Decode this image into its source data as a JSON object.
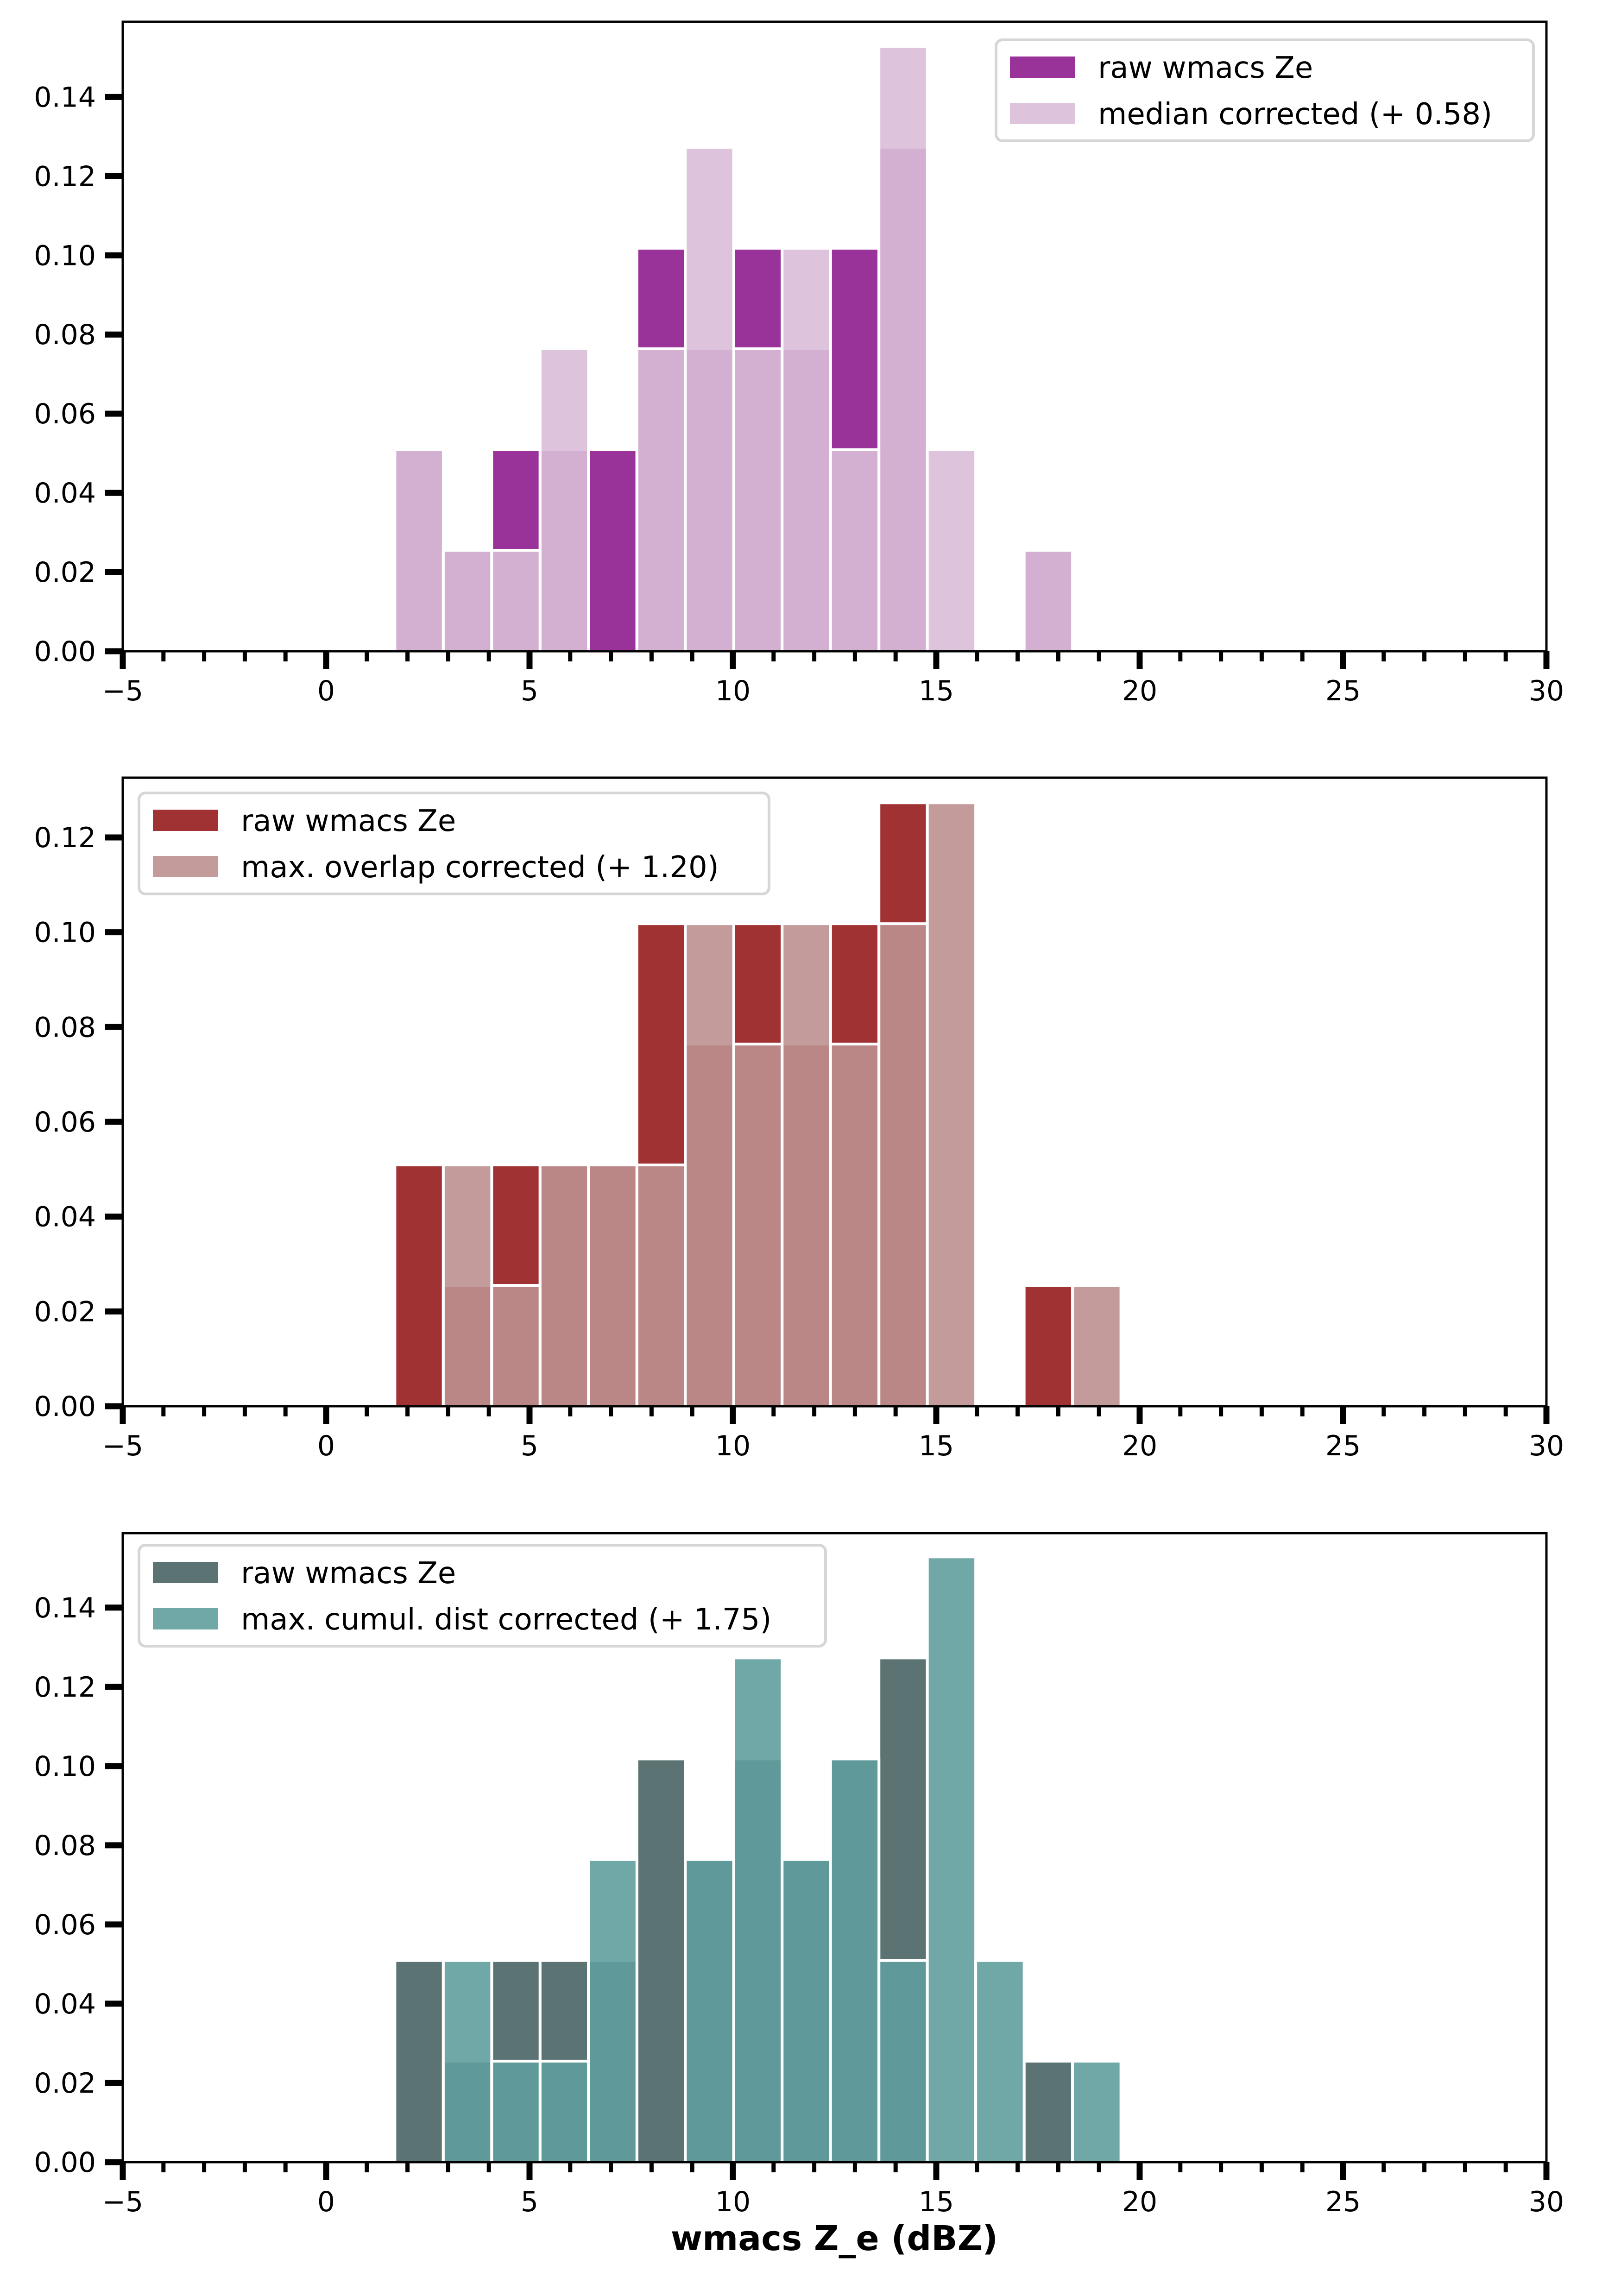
{
  "chart_data": [
    {
      "type": "bar",
      "subtype": "overlaid-histogram",
      "title": "",
      "xlabel": "",
      "ylabel": "",
      "xlim": [
        -5,
        30
      ],
      "ylim": [
        0,
        0.159
      ],
      "x_major_ticks": [
        -5,
        0,
        5,
        10,
        15,
        20,
        25,
        30
      ],
      "x_tick_labels": [
        "−5",
        "0",
        "5",
        "10",
        "15",
        "20",
        "25",
        "30"
      ],
      "x_minor_step": 1,
      "y_ticks": [
        0.0,
        0.02,
        0.04,
        0.06,
        0.08,
        0.1,
        0.12,
        0.14
      ],
      "y_tick_labels": [
        "0.00",
        "0.02",
        "0.04",
        "0.06",
        "0.08",
        "0.10",
        "0.12",
        "0.14"
      ],
      "grid": false,
      "legend_position": "top-right",
      "bin_edges": [
        1.69,
        2.88,
        4.07,
        5.26,
        6.45,
        7.64,
        8.83,
        10.02,
        11.21,
        12.4,
        13.59,
        14.78,
        15.97,
        17.16,
        18.35,
        19.54
      ],
      "series": [
        {
          "name": "raw wmacs Ze",
          "color": "#993399",
          "opacity": 1.0,
          "values": [
            0.0509,
            0.0255,
            0.0509,
            0.0509,
            0.0509,
            0.1018,
            0.0764,
            0.1018,
            0.0764,
            0.1018,
            0.1273,
            0,
            0,
            0.0255,
            0
          ]
        },
        {
          "name": "median corrected (+ 0.58)",
          "color": "#D9BDD7",
          "opacity": 0.9,
          "values": [
            0.0509,
            0.0255,
            0.0255,
            0.0764,
            0,
            0.0764,
            0.1273,
            0.0764,
            0.1018,
            0.0509,
            0.1528,
            0.0509,
            0,
            0.0255,
            0
          ]
        }
      ]
    },
    {
      "type": "bar",
      "subtype": "overlaid-histogram",
      "title": "",
      "xlabel": "",
      "ylabel": "",
      "xlim": [
        -5,
        30
      ],
      "ylim": [
        0,
        0.1326
      ],
      "x_major_ticks": [
        -5,
        0,
        5,
        10,
        15,
        20,
        25,
        30
      ],
      "x_tick_labels": [
        "−5",
        "0",
        "5",
        "10",
        "15",
        "20",
        "25",
        "30"
      ],
      "x_minor_step": 1,
      "y_ticks": [
        0.0,
        0.02,
        0.04,
        0.06,
        0.08,
        0.1,
        0.12
      ],
      "y_tick_labels": [
        "0.00",
        "0.02",
        "0.04",
        "0.06",
        "0.08",
        "0.10",
        "0.12"
      ],
      "grid": false,
      "legend_position": "top-left",
      "bin_edges": [
        1.69,
        2.88,
        4.07,
        5.26,
        6.45,
        7.64,
        8.83,
        10.02,
        11.21,
        12.4,
        13.59,
        14.78,
        15.97,
        17.16,
        18.35,
        19.54
      ],
      "series": [
        {
          "name": "raw wmacs Ze",
          "color": "#A03234",
          "opacity": 1.0,
          "values": [
            0.0509,
            0.0255,
            0.0509,
            0.0509,
            0.0509,
            0.1018,
            0.0764,
            0.1018,
            0.0764,
            0.1018,
            0.1273,
            0,
            0,
            0.0255,
            0
          ]
        },
        {
          "name": "max. overlap corrected (+ 1.20)",
          "color": "#BC908F",
          "opacity": 0.9,
          "values": [
            0,
            0.0509,
            0.0255,
            0.0509,
            0.0509,
            0.0509,
            0.1018,
            0.0764,
            0.1018,
            0.0764,
            0.1018,
            0.1273,
            0,
            0,
            0.0255
          ]
        }
      ]
    },
    {
      "type": "bar",
      "subtype": "overlaid-histogram",
      "title": "",
      "xlabel": "wmacs Z_e (dBZ)",
      "ylabel": "",
      "xlim": [
        -5,
        30
      ],
      "ylim": [
        0,
        0.1588
      ],
      "x_major_ticks": [
        -5,
        0,
        5,
        10,
        15,
        20,
        25,
        30
      ],
      "x_tick_labels": [
        "−5",
        "0",
        "5",
        "10",
        "15",
        "20",
        "25",
        "30"
      ],
      "x_minor_step": 1,
      "y_ticks": [
        0.0,
        0.02,
        0.04,
        0.06,
        0.08,
        0.1,
        0.12,
        0.14
      ],
      "y_tick_labels": [
        "0.00",
        "0.02",
        "0.04",
        "0.06",
        "0.08",
        "0.10",
        "0.12",
        "0.14"
      ],
      "grid": false,
      "legend_position": "top-left",
      "bin_edges": [
        1.69,
        2.88,
        4.07,
        5.26,
        6.45,
        7.64,
        8.83,
        10.02,
        11.21,
        12.4,
        13.59,
        14.78,
        15.97,
        17.16,
        18.35,
        19.54
      ],
      "series": [
        {
          "name": "raw wmacs Ze",
          "color": "#5B7473",
          "opacity": 1.0,
          "values": [
            0.0509,
            0.0255,
            0.0509,
            0.0509,
            0.0509,
            0.1018,
            0.0764,
            0.1018,
            0.0764,
            0.1018,
            0.1273,
            0,
            0,
            0.0255,
            0
          ]
        },
        {
          "name": "max. cumul. dist corrected (+ 1.75)",
          "color": "#609D9D",
          "opacity": 0.9,
          "values": [
            0,
            0.0509,
            0.0255,
            0.0255,
            0.0764,
            0,
            0.0764,
            0.1273,
            0.0764,
            0.1018,
            0.0509,
            0.1528,
            0.0509,
            0,
            0.0255
          ]
        }
      ]
    }
  ]
}
